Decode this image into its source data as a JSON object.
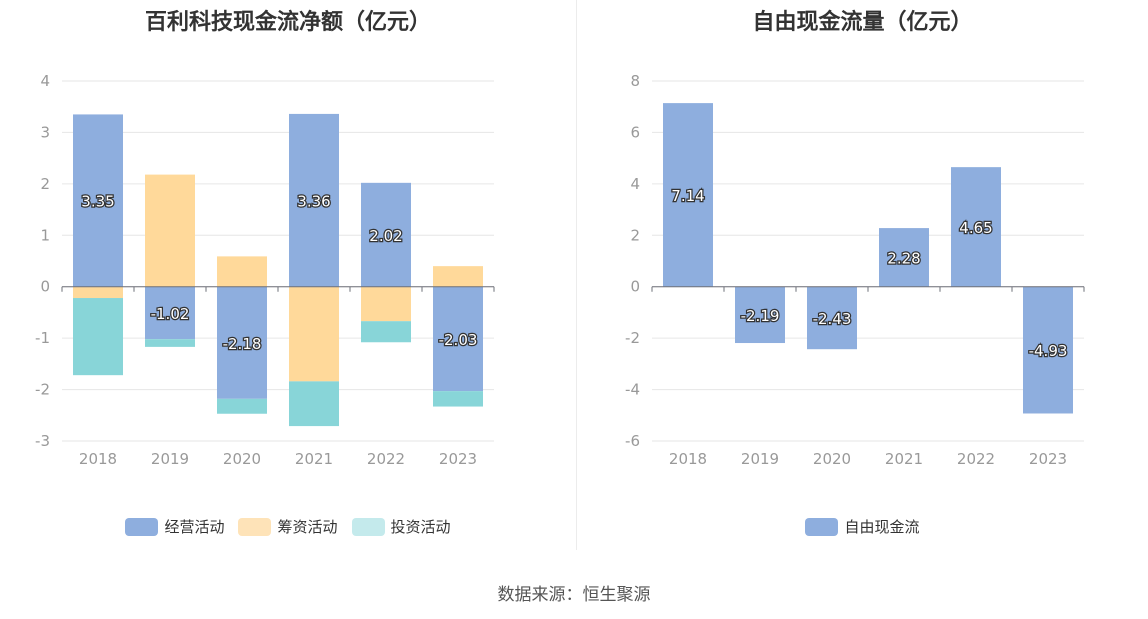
{
  "chart_data": [
    {
      "id": "left",
      "type": "bar",
      "stacked": true,
      "title": "百利科技现金流净额（亿元）",
      "categories": [
        "2018",
        "2019",
        "2020",
        "2021",
        "2022",
        "2023"
      ],
      "ylim": [
        -3,
        4
      ],
      "yticks": [
        4,
        3,
        2,
        1,
        0,
        -1,
        -2,
        -3
      ],
      "grid": true,
      "legend_position": "bottom-center",
      "series": [
        {
          "name": "经营活动",
          "color": "#8eaede",
          "values": [
            3.35,
            -1.02,
            -2.18,
            3.36,
            2.02,
            -2.03
          ],
          "labels": [
            "3.35",
            "-1.02",
            "-2.18",
            "3.36",
            "2.02",
            "-2.03"
          ]
        },
        {
          "name": "筹资活动",
          "color": "#ffd99a",
          "values": [
            -0.22,
            2.18,
            0.59,
            -1.84,
            -0.67,
            0.4
          ]
        },
        {
          "name": "投资活动",
          "color": "#88d5d8",
          "values": [
            -1.5,
            -0.15,
            -0.29,
            -0.87,
            -0.41,
            -0.3
          ]
        }
      ]
    },
    {
      "id": "right",
      "type": "bar",
      "title": "自由现金流量（亿元）",
      "categories": [
        "2018",
        "2019",
        "2020",
        "2021",
        "2022",
        "2023"
      ],
      "ylim": [
        -6,
        8
      ],
      "yticks": [
        8,
        6,
        4,
        2,
        0,
        -2,
        -4,
        -6
      ],
      "grid": true,
      "legend_position": "bottom-center",
      "series": [
        {
          "name": "自由现金流",
          "color": "#8eaede",
          "values": [
            7.14,
            -2.19,
            -2.43,
            2.28,
            4.65,
            -4.93
          ],
          "labels": [
            "7.14",
            "-2.19",
            "-2.43",
            "2.28",
            "4.65",
            "-4.93"
          ]
        }
      ]
    }
  ],
  "legend_colors": {
    "operating": "#8eaede",
    "financing": "#fee3b8",
    "investing": "#c4eaec",
    "fcf": "#8eaede"
  },
  "source": "数据来源：恒生聚源"
}
